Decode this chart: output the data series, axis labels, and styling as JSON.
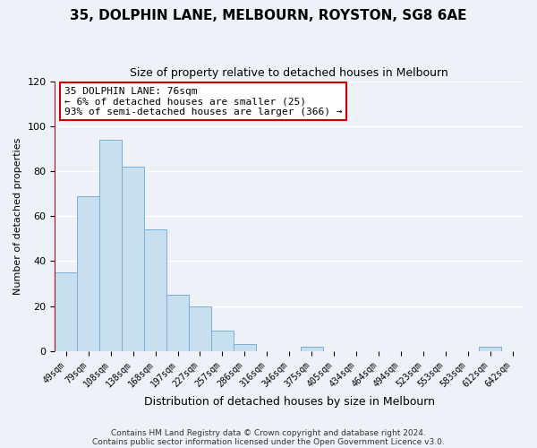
{
  "title": "35, DOLPHIN LANE, MELBOURN, ROYSTON, SG8 6AE",
  "subtitle": "Size of property relative to detached houses in Melbourn",
  "xlabel": "Distribution of detached houses by size in Melbourn",
  "ylabel": "Number of detached properties",
  "bar_color": "#c8dff0",
  "bar_edge_color": "#7bafd4",
  "background_color": "#eef2f8",
  "grid_color": "#ffffff",
  "categories": [
    "49sqm",
    "79sqm",
    "108sqm",
    "138sqm",
    "168sqm",
    "197sqm",
    "227sqm",
    "257sqm",
    "286sqm",
    "316sqm",
    "346sqm",
    "375sqm",
    "405sqm",
    "434sqm",
    "464sqm",
    "494sqm",
    "523sqm",
    "553sqm",
    "583sqm",
    "612sqm",
    "642sqm"
  ],
  "values": [
    35,
    69,
    94,
    82,
    54,
    25,
    20,
    9,
    3,
    0,
    0,
    2,
    0,
    0,
    0,
    0,
    0,
    0,
    0,
    2,
    0
  ],
  "ylim": [
    0,
    120
  ],
  "yticks": [
    0,
    20,
    40,
    60,
    80,
    100,
    120
  ],
  "marker_color": "#cc0000",
  "annotation_title": "35 DOLPHIN LANE: 76sqm",
  "annotation_line1": "← 6% of detached houses are smaller (25)",
  "annotation_line2": "93% of semi-detached houses are larger (366) →",
  "annotation_box_color": "#ffffff",
  "annotation_box_edge": "#cc0000",
  "footer1": "Contains HM Land Registry data © Crown copyright and database right 2024.",
  "footer2": "Contains public sector information licensed under the Open Government Licence v3.0."
}
